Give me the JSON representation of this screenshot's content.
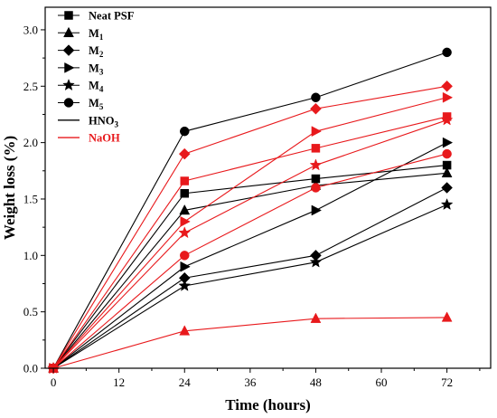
{
  "chart_data": {
    "type": "line",
    "title": "",
    "xlabel": "Time (hours)",
    "ylabel": "Weight loss (%)",
    "x": [
      0,
      24,
      48,
      72
    ],
    "xlim": [
      -1.5,
      80
    ],
    "ylim": [
      0,
      3.2
    ],
    "xticks": [
      0,
      12,
      24,
      36,
      48,
      60,
      72
    ],
    "yticks": [
      0.0,
      0.5,
      1.0,
      1.5,
      2.0,
      2.5,
      3.0
    ],
    "xtick_labels": [
      "0",
      "12",
      "24",
      "36",
      "48",
      "60",
      "72"
    ],
    "ytick_labels": [
      "0.0",
      "0.5",
      "1.0",
      "1.5",
      "2.0",
      "2.5",
      "3.0"
    ],
    "grid": false,
    "legend_position": "top-left",
    "legend": {
      "markers": [
        {
          "marker": "square",
          "label": "Neat PSF",
          "sub": ""
        },
        {
          "marker": "triangle-up",
          "label": "M",
          "sub": "1"
        },
        {
          "marker": "diamond",
          "label": "M",
          "sub": "2"
        },
        {
          "marker": "triangle-right",
          "label": "M",
          "sub": "3"
        },
        {
          "marker": "star",
          "label": "M",
          "sub": "4"
        },
        {
          "marker": "circle",
          "label": "M",
          "sub": "5"
        }
      ],
      "lines": [
        {
          "label": "HNO",
          "sub": "3",
          "color": "#000000"
        },
        {
          "label": "NaOH",
          "sub": "",
          "color": "#e8191c"
        }
      ]
    },
    "series": [
      {
        "sample": "Neat PSF",
        "medium": "HNO3",
        "marker": "square",
        "color": "#000000",
        "values": [
          0,
          1.55,
          1.68,
          1.8
        ]
      },
      {
        "sample": "M1",
        "medium": "HNO3",
        "marker": "triangle-up",
        "color": "#000000",
        "values": [
          0,
          1.4,
          1.62,
          1.73
        ]
      },
      {
        "sample": "M2",
        "medium": "HNO3",
        "marker": "diamond",
        "color": "#000000",
        "values": [
          0,
          0.8,
          1.0,
          1.6
        ]
      },
      {
        "sample": "M3",
        "medium": "HNO3",
        "marker": "triangle-right",
        "color": "#000000",
        "values": [
          0,
          0.9,
          1.4,
          2.0
        ]
      },
      {
        "sample": "M4",
        "medium": "HNO3",
        "marker": "star",
        "color": "#000000",
        "values": [
          0,
          0.73,
          0.94,
          1.45
        ]
      },
      {
        "sample": "M5",
        "medium": "HNO3",
        "marker": "circle",
        "color": "#000000",
        "values": [
          0,
          2.1,
          2.4,
          2.8
        ]
      },
      {
        "sample": "Neat PSF",
        "medium": "NaOH",
        "marker": "square",
        "color": "#e8191c",
        "values": [
          0,
          1.66,
          1.95,
          2.23
        ]
      },
      {
        "sample": "M1",
        "medium": "NaOH",
        "marker": "triangle-up",
        "color": "#e8191c",
        "values": [
          0,
          0.33,
          0.44,
          0.45
        ]
      },
      {
        "sample": "M2",
        "medium": "NaOH",
        "marker": "diamond",
        "color": "#e8191c",
        "values": [
          0,
          1.9,
          2.3,
          2.5
        ]
      },
      {
        "sample": "M3",
        "medium": "NaOH",
        "marker": "triangle-right",
        "color": "#e8191c",
        "values": [
          0,
          1.3,
          2.1,
          2.4
        ]
      },
      {
        "sample": "M4",
        "medium": "NaOH",
        "marker": "star",
        "color": "#e8191c",
        "values": [
          0,
          1.2,
          1.8,
          2.2
        ]
      },
      {
        "sample": "M5",
        "medium": "NaOH",
        "marker": "circle",
        "color": "#e8191c",
        "values": [
          0,
          1.0,
          1.6,
          1.9
        ]
      }
    ]
  }
}
